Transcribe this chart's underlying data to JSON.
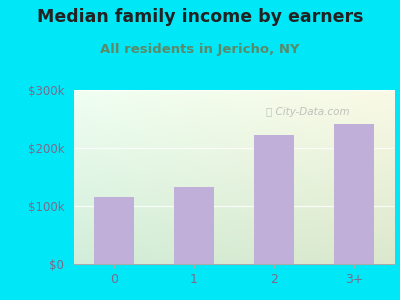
{
  "categories": [
    "0",
    "1",
    "2",
    "3+"
  ],
  "values": [
    115000,
    132000,
    222000,
    242000
  ],
  "bar_color": "#c0afd8",
  "title": "Median family income by earners",
  "subtitle": "All residents in Jericho, NY",
  "title_fontsize": 12.5,
  "subtitle_fontsize": 9.5,
  "title_color": "#222222",
  "subtitle_color": "#5a8a6a",
  "tick_label_color": "#7a6a8a",
  "background_outer": "#00e8f8",
  "ylim": [
    0,
    300000
  ],
  "yticks": [
    0,
    100000,
    200000,
    300000
  ],
  "ytick_labels": [
    "$0",
    "$100k",
    "$200k",
    "$300k"
  ],
  "watermark": "City-Data.com",
  "bg_gradient_left": "#c8e8c0",
  "bg_gradient_right": "#f5fdf5",
  "bg_gradient_top": "#e8f8f0",
  "bg_gradient_bottom": "#d0ecc8"
}
